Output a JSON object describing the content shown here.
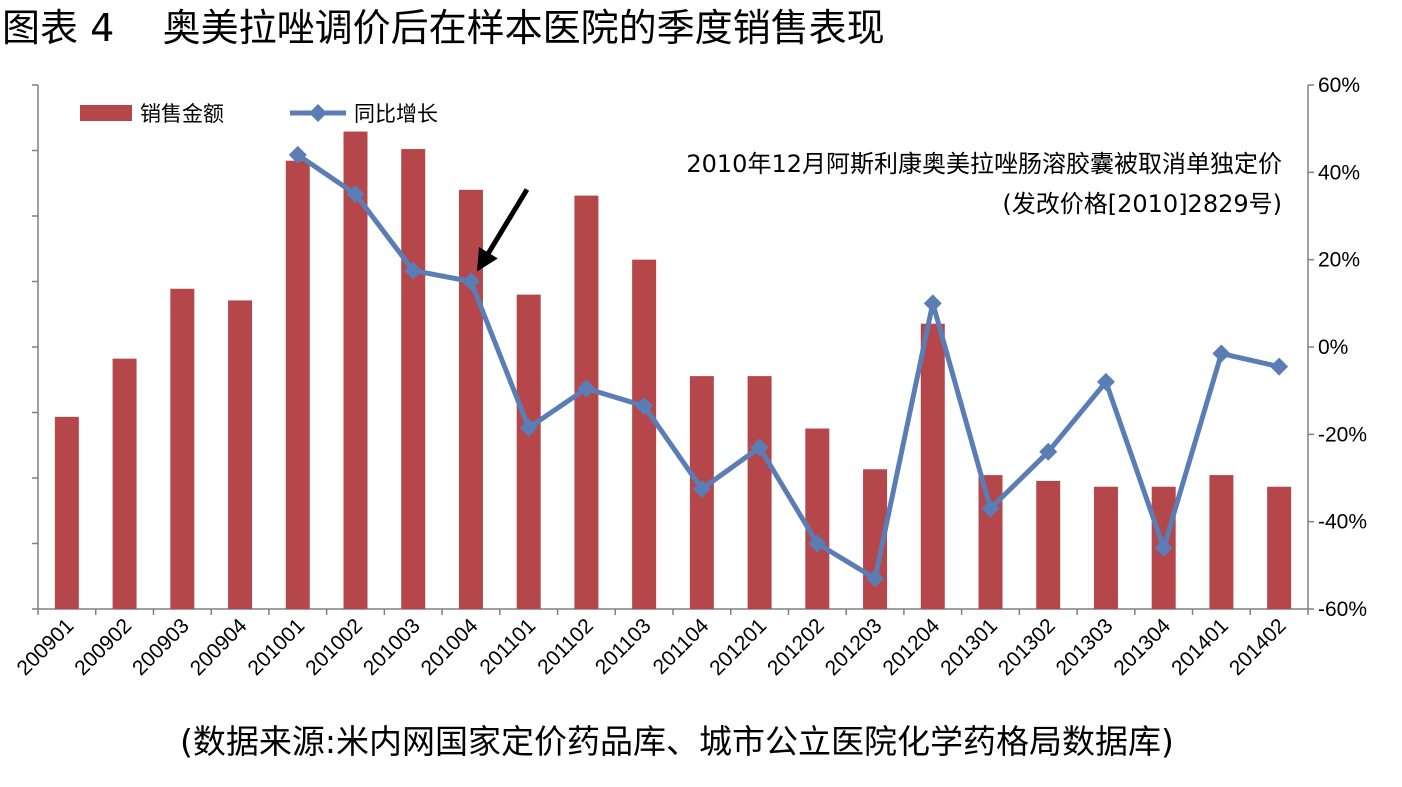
{
  "title": "图表 4    奥美拉唑调价后在样本医院的季度销售表现",
  "source": "(数据来源:米内网国家定价药品库、城市公立医院化学药格局数据库)",
  "chart_data": {
    "type": "bar+line",
    "categories": [
      "200901",
      "200902",
      "200903",
      "200904",
      "201001",
      "201002",
      "201003",
      "201004",
      "201101",
      "201102",
      "201103",
      "201104",
      "201201",
      "201202",
      "201203",
      "201204",
      "201301",
      "201302",
      "201303",
      "201304",
      "201401",
      "201402"
    ],
    "series": [
      {
        "name": "销售金额",
        "type": "bar",
        "axis": "left",
        "color": "#B5474B",
        "values": [
          3.3,
          4.3,
          5.5,
          5.3,
          7.7,
          8.2,
          7.9,
          7.2,
          5.4,
          7.1,
          6.0,
          4.0,
          4.0,
          3.1,
          2.4,
          4.9,
          2.3,
          2.2,
          2.1,
          2.1,
          2.3,
          2.1
        ]
      },
      {
        "name": "同比增长",
        "type": "line",
        "axis": "right",
        "color": "#5B7DB5",
        "values": [
          null,
          null,
          null,
          null,
          44,
          35,
          17.5,
          15,
          -18.5,
          -9.5,
          -13.5,
          -32.5,
          -23,
          -45,
          -53,
          10,
          -37,
          -24,
          -8,
          -46,
          -1.5,
          -4.5
        ]
      }
    ],
    "y_left_range": [
      0,
      9
    ],
    "y_right_range": [
      -60,
      60
    ],
    "y_right_ticks": [
      "60%",
      "40%",
      "20%",
      "0%",
      "-20%",
      "-40%",
      "-60%"
    ],
    "y_right_tick_values": [
      60,
      40,
      20,
      0,
      -20,
      -40,
      -60
    ],
    "annotation": {
      "line1": "2010年12月阿斯利康奥美拉唑肠溶胶囊被取消单独定价",
      "line2": "(发改价格[2010]2829号)",
      "target_category": "201004"
    },
    "legend_position": "top-left",
    "grid": false
  }
}
